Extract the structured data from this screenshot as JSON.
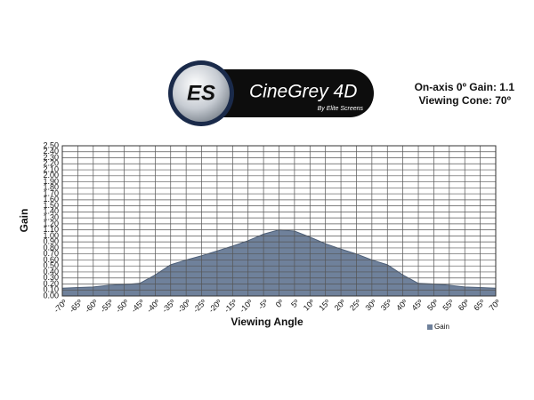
{
  "chart_data": {
    "type": "area",
    "brand": {
      "mark": "ES",
      "name": "CineGrey 4D",
      "tagline": "By Elite Screens"
    },
    "annotations": [
      "On-axis 0º Gain: 1.1",
      "Viewing Cone: 70º"
    ],
    "x_label": "Viewing Angle",
    "y_label": "Gain",
    "x": [
      -70,
      -65,
      -60,
      -55,
      -50,
      -45,
      -40,
      -35,
      -30,
      -25,
      -20,
      -15,
      -10,
      -5,
      0,
      5,
      10,
      15,
      20,
      25,
      30,
      35,
      40,
      45,
      50,
      55,
      60,
      65,
      70
    ],
    "series": [
      {
        "name": "Gain",
        "color": "#6f819b",
        "values": [
          0.13,
          0.14,
          0.15,
          0.18,
          0.19,
          0.21,
          0.35,
          0.52,
          0.6,
          0.67,
          0.75,
          0.83,
          0.92,
          1.03,
          1.1,
          1.08,
          0.98,
          0.87,
          0.78,
          0.7,
          0.6,
          0.52,
          0.35,
          0.21,
          0.2,
          0.18,
          0.15,
          0.14,
          0.13
        ]
      }
    ],
    "xlim": [
      -70,
      70
    ],
    "xticks": [
      {
        "value": -70,
        "label": "-70º"
      },
      {
        "value": -65,
        "label": "-65º"
      },
      {
        "value": -60,
        "label": "-60º"
      },
      {
        "value": -55,
        "label": "-55º"
      },
      {
        "value": -50,
        "label": "-50º"
      },
      {
        "value": -45,
        "label": "-45º"
      },
      {
        "value": -40,
        "label": "-40º"
      },
      {
        "value": -35,
        "label": "-35º"
      },
      {
        "value": -30,
        "label": "-30º"
      },
      {
        "value": -25,
        "label": "-25º"
      },
      {
        "value": -20,
        "label": "-20º"
      },
      {
        "value": -15,
        "label": "-15º"
      },
      {
        "value": -10,
        "label": "-10º"
      },
      {
        "value": -5,
        "label": "-5º"
      },
      {
        "value": 0,
        "label": "0º"
      },
      {
        "value": 5,
        "label": "5º"
      },
      {
        "value": 10,
        "label": "10º"
      },
      {
        "value": 15,
        "label": "15º"
      },
      {
        "value": 20,
        "label": "20º"
      },
      {
        "value": 25,
        "label": "25º"
      },
      {
        "value": 30,
        "label": "30º"
      },
      {
        "value": 35,
        "label": "35º"
      },
      {
        "value": 40,
        "label": "40º"
      },
      {
        "value": 45,
        "label": "45º"
      },
      {
        "value": 50,
        "label": "50º"
      },
      {
        "value": 55,
        "label": "55º"
      },
      {
        "value": 60,
        "label": "60º"
      },
      {
        "value": 65,
        "label": "65º"
      },
      {
        "value": 70,
        "label": "70º"
      }
    ],
    "ylim": [
      0,
      2.5
    ],
    "yticks": [
      {
        "value": 0,
        "label": "0.00"
      },
      {
        "value": 0.1,
        "label": "0.10"
      },
      {
        "value": 0.2,
        "label": "0.20"
      },
      {
        "value": 0.3,
        "label": "0.30"
      },
      {
        "value": 0.4,
        "label": "0.40"
      },
      {
        "value": 0.5,
        "label": "0.50"
      },
      {
        "value": 0.6,
        "label": "0.60"
      },
      {
        "value": 0.7,
        "label": "0.70"
      },
      {
        "value": 0.8,
        "label": "0.80"
      },
      {
        "value": 0.9,
        "label": "0.90"
      },
      {
        "value": 1,
        "label": "1.00"
      },
      {
        "value": 1.1,
        "label": "1.10"
      },
      {
        "value": 1.2,
        "label": "1.20"
      },
      {
        "value": 1.3,
        "label": "1.30"
      },
      {
        "value": 1.4,
        "label": "1.40"
      },
      {
        "value": 1.5,
        "label": "1.50"
      },
      {
        "value": 1.6,
        "label": "1.60"
      },
      {
        "value": 1.7,
        "label": "1.70"
      },
      {
        "value": 1.8,
        "label": "1.80"
      },
      {
        "value": 1.9,
        "label": "1.90"
      },
      {
        "value": 2,
        "label": "2.00"
      },
      {
        "value": 2.1,
        "label": "2.10"
      },
      {
        "value": 2.2,
        "label": "2.20"
      },
      {
        "value": 2.3,
        "label": "2.30"
      },
      {
        "value": 2.4,
        "label": "2.40"
      },
      {
        "value": 2.5,
        "label": "2.50"
      }
    ],
    "grid": true,
    "legend": "bottom-right"
  }
}
